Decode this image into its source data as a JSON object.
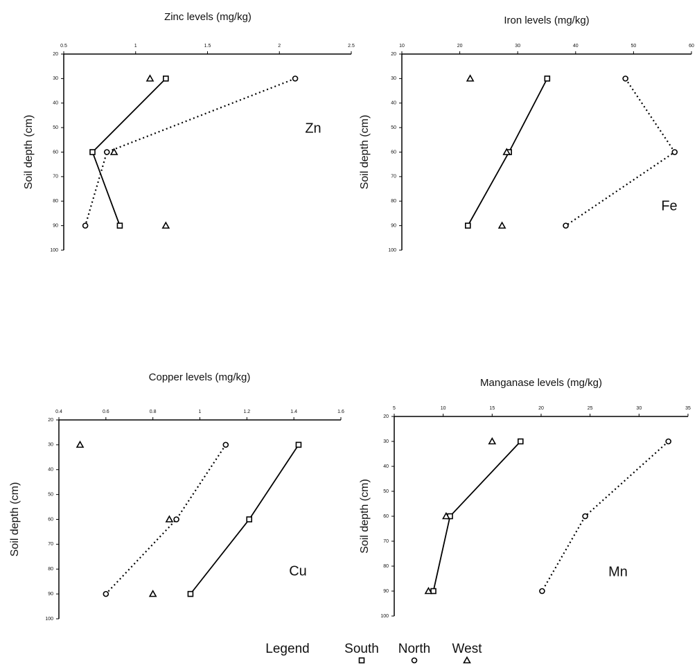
{
  "chart_data": [
    {
      "type": "line",
      "title": "Zinc levels (mg/kg)",
      "y_label": "Soil depth (cm)",
      "annotation": "Zn",
      "xlim": [
        0.5,
        2.5
      ],
      "xticks": [
        0.5,
        1,
        1.5,
        2,
        2.5
      ],
      "ylim": [
        20,
        100
      ],
      "yticks": [
        20,
        30,
        40,
        50,
        60,
        70,
        80,
        90,
        100
      ],
      "y_reversed": true,
      "series": [
        {
          "name": "South",
          "color": "#000000",
          "marker": "square",
          "line": "solid",
          "x": [
            1.21,
            0.7,
            0.89
          ],
          "y": [
            30,
            60,
            90
          ]
        },
        {
          "name": "North",
          "color": "#000000",
          "marker": "circle",
          "line": "dotted",
          "x": [
            2.11,
            0.8,
            0.65
          ],
          "y": [
            30,
            60,
            90
          ]
        },
        {
          "name": "West",
          "color": "#000000",
          "marker": "triangle",
          "line": "none",
          "x": [
            1.1,
            0.85,
            1.21
          ],
          "y": [
            30,
            60,
            90
          ]
        }
      ]
    },
    {
      "type": "line",
      "title": "Iron levels (mg/kg)",
      "y_label": "Soil depth (cm)",
      "annotation": "Fe",
      "xlim": [
        10,
        60
      ],
      "xticks": [
        10,
        20,
        30,
        40,
        50,
        60
      ],
      "ylim": [
        20,
        100
      ],
      "yticks": [
        20,
        30,
        40,
        50,
        60,
        70,
        80,
        90,
        100
      ],
      "y_reversed": true,
      "series": [
        {
          "name": "South",
          "color": "#000000",
          "marker": "square",
          "line": "solid",
          "x": [
            35.1,
            28.5,
            21.4
          ],
          "y": [
            30,
            60,
            90
          ]
        },
        {
          "name": "North",
          "color": "#000000",
          "marker": "circle",
          "line": "dotted",
          "x": [
            48.6,
            57.1,
            38.3
          ],
          "y": [
            30,
            60,
            90
          ]
        },
        {
          "name": "West",
          "color": "#000000",
          "marker": "triangle",
          "line": "none",
          "x": [
            21.8,
            28.1,
            27.3
          ],
          "y": [
            30,
            60,
            90
          ]
        }
      ]
    },
    {
      "type": "line",
      "title": "Copper levels (mg/kg)",
      "y_label": "Soil depth (cm)",
      "annotation": "Cu",
      "xlim": [
        0.4,
        1.6
      ],
      "xticks": [
        0.4,
        0.6,
        0.8,
        1,
        1.2,
        1.4,
        1.6
      ],
      "ylim": [
        20,
        100
      ],
      "yticks": [
        20,
        30,
        40,
        50,
        60,
        70,
        80,
        90,
        100
      ],
      "y_reversed": true,
      "series": [
        {
          "name": "South",
          "color": "#000000",
          "marker": "square",
          "line": "solid",
          "x": [
            1.42,
            1.21,
            0.96
          ],
          "y": [
            30,
            60,
            90
          ]
        },
        {
          "name": "North",
          "color": "#000000",
          "marker": "circle",
          "line": "dotted",
          "x": [
            1.11,
            0.9,
            0.6
          ],
          "y": [
            30,
            60,
            90
          ]
        },
        {
          "name": "West",
          "color": "#000000",
          "marker": "triangle",
          "line": "none",
          "x": [
            0.49,
            0.87,
            0.8
          ],
          "y": [
            30,
            60,
            90
          ]
        }
      ]
    },
    {
      "type": "line",
      "title": "Manganase levels (mg/kg)",
      "y_label": "Soil depth (cm)",
      "annotation": "Mn",
      "xlim": [
        5,
        35
      ],
      "xticks": [
        5,
        10,
        15,
        20,
        25,
        30,
        35
      ],
      "ylim": [
        20,
        100
      ],
      "yticks": [
        20,
        30,
        40,
        50,
        60,
        70,
        80,
        90,
        100
      ],
      "y_reversed": true,
      "series": [
        {
          "name": "South",
          "color": "#000000",
          "marker": "square",
          "line": "solid",
          "x": [
            17.9,
            10.7,
            9.0
          ],
          "y": [
            30,
            60,
            90
          ]
        },
        {
          "name": "North",
          "color": "#000000",
          "marker": "circle",
          "line": "dotted",
          "x": [
            33.0,
            24.5,
            20.1
          ],
          "y": [
            30,
            60,
            90
          ]
        },
        {
          "name": "West",
          "color": "#000000",
          "marker": "triangle",
          "line": "none",
          "x": [
            15.0,
            10.3,
            8.5
          ],
          "y": [
            30,
            60,
            90
          ]
        }
      ]
    }
  ],
  "legend": {
    "title": "Legend"
  }
}
